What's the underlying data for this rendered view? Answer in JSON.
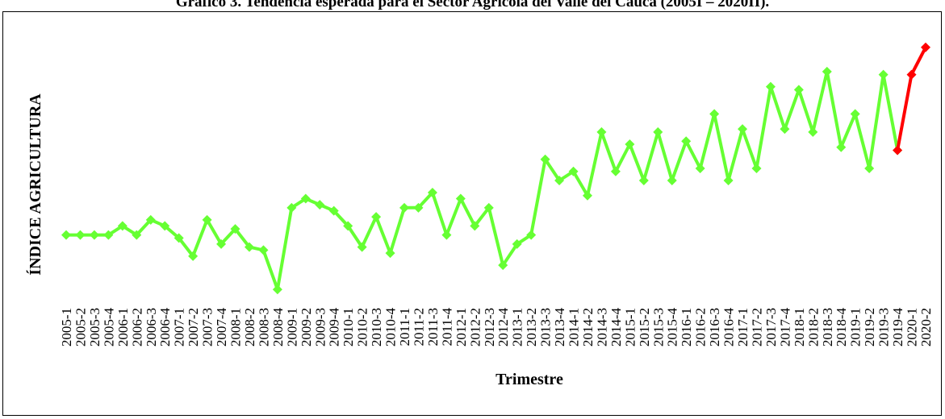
{
  "page": {
    "title": "Gráfico 3. Tendencia esperada para el Sector Agrícola del Valle del Cauca (2005I – 2020II)."
  },
  "chart_data": {
    "type": "line",
    "ylabel": "ÍNDICE AGRICULTURA",
    "xlabel": "Trimestre",
    "categories": [
      "2005-1",
      "2005-2",
      "2005-3",
      "2005-4",
      "2006-1",
      "2006-2",
      "2006-3",
      "2006-4",
      "2007-1",
      "2007-2",
      "2007-3",
      "2007-4",
      "2008-1",
      "2008-2",
      "2008-3",
      "2008-4",
      "2009-1",
      "2009-2",
      "2009-3",
      "2009-4",
      "2010-1",
      "2010-2",
      "2010-3",
      "2010-4",
      "2011-1",
      "2011-2",
      "2011-3",
      "2011-4",
      "2012-1",
      "2012-2",
      "2012-3",
      "2012-4",
      "2013-1",
      "2013-2",
      "2013-3",
      "2013-4",
      "2014-1",
      "2014-2",
      "2014-3",
      "2014-4",
      "2015-1",
      "2015-2",
      "2015-3",
      "2015-4",
      "2016-1",
      "2016-2",
      "2016-3",
      "2016-4",
      "2017-1",
      "2017-2",
      "2017-3",
      "2017-4",
      "2018-1",
      "2018-2",
      "2018-3",
      "2018-4",
      "2019-1",
      "2019-2",
      "2019-3",
      "2019-4",
      "2020-1",
      "2020-2"
    ],
    "series": [
      {
        "color": "#66ff33",
        "values": [
          63,
          63,
          63,
          63,
          66,
          63,
          68,
          66,
          62,
          56,
          68,
          60,
          65,
          59,
          58,
          45,
          72,
          75,
          73,
          71,
          66,
          59,
          69,
          57,
          72,
          72,
          77,
          63,
          75,
          66,
          72,
          53,
          60,
          63,
          88,
          81,
          84,
          76,
          97,
          84,
          93,
          81,
          97,
          81,
          94,
          85,
          103,
          81,
          98,
          85,
          112,
          98,
          111,
          97,
          117,
          92,
          103,
          85,
          116,
          91,
          null,
          null
        ]
      },
      {
        "color": "#ff0000",
        "values": [
          null,
          null,
          null,
          null,
          null,
          null,
          null,
          null,
          null,
          null,
          null,
          null,
          null,
          null,
          null,
          null,
          null,
          null,
          null,
          null,
          null,
          null,
          null,
          null,
          null,
          null,
          null,
          null,
          null,
          null,
          null,
          null,
          null,
          null,
          null,
          null,
          null,
          null,
          null,
          null,
          null,
          null,
          null,
          null,
          null,
          null,
          null,
          null,
          null,
          null,
          null,
          null,
          null,
          null,
          null,
          null,
          null,
          null,
          null,
          91,
          116,
          125
        ]
      }
    ],
    "ylim": [
      40,
      130
    ],
    "grid": false,
    "legend": "none"
  }
}
